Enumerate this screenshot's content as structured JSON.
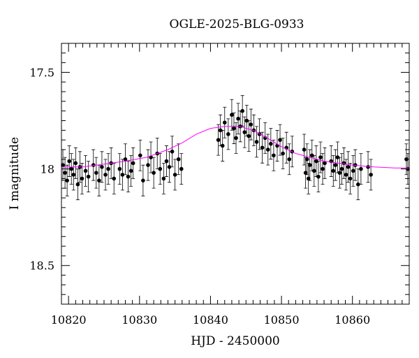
{
  "chart_data": {
    "type": "scatter",
    "title": "OGLE-2025-BLG-0933",
    "xlabel": "HJD - 2450000",
    "ylabel": "I magnitude",
    "xlim": [
      10819,
      10868
    ],
    "ylim": [
      18.7,
      17.35
    ],
    "y_inverted": true,
    "x_ticks": [
      10820,
      10830,
      10840,
      10850,
      10860
    ],
    "y_ticks": [
      17.5,
      18,
      18.5
    ],
    "x_tick_labels": [
      "10820",
      "10830",
      "10840",
      "10850",
      "10860"
    ],
    "y_tick_labels": [
      "17.5",
      "18",
      "18.5"
    ],
    "grid": false,
    "colors": {
      "points": "#000000",
      "model": "#ff00ff"
    },
    "model_curve": {
      "x": [
        10819,
        10822,
        10825,
        10828,
        10831,
        10834,
        10836,
        10838,
        10840,
        10842,
        10844,
        10846,
        10848,
        10850,
        10852,
        10854,
        10856,
        10858,
        10860,
        10863,
        10866,
        10868
      ],
      "y": [
        17.99,
        17.99,
        17.975,
        17.96,
        17.94,
        17.9,
        17.865,
        17.82,
        17.79,
        17.78,
        17.78,
        17.8,
        17.84,
        17.885,
        17.92,
        17.94,
        17.96,
        17.97,
        17.98,
        17.99,
        17.995,
        17.995
      ]
    },
    "points": {
      "x": [
        10819.2,
        10819.5,
        10819.8,
        10820.1,
        10820.4,
        10820.7,
        10821.0,
        10821.3,
        10821.6,
        10821.9,
        10822.4,
        10822.8,
        10823.5,
        10823.9,
        10824.3,
        10824.7,
        10825.2,
        10825.6,
        10826.0,
        10826.4,
        10827.2,
        10827.6,
        10828.0,
        10828.4,
        10828.8,
        10829.1,
        10830.1,
        10830.5,
        10831.2,
        10831.6,
        10832.0,
        10832.5,
        10832.9,
        10833.4,
        10833.8,
        10834.2,
        10834.6,
        10835.0,
        10835.5,
        10835.9,
        10841.1,
        10841.4,
        10841.7,
        10842.0,
        10842.5,
        10843.0,
        10843.3,
        10843.6,
        10843.9,
        10844.2,
        10844.5,
        10844.8,
        10845.1,
        10845.4,
        10845.7,
        10846.1,
        10846.5,
        10846.9,
        10847.3,
        10847.7,
        10848.1,
        10848.5,
        10848.9,
        10849.4,
        10849.8,
        10850.2,
        10850.7,
        10851.1,
        10851.5,
        10853.2,
        10853.4,
        10853.6,
        10853.8,
        10854.0,
        10854.3,
        10854.6,
        10854.9,
        10855.2,
        10855.5,
        10855.8,
        10856.1,
        10857.0,
        10857.3,
        10857.6,
        10857.9,
        10858.2,
        10858.5,
        10858.8,
        10859.1,
        10859.4,
        10859.7,
        10860.1,
        10860.4,
        10860.8,
        10861.2,
        10862.2,
        10862.6,
        10867.6,
        10867.8
      ],
      "y": [
        17.98,
        18.02,
        18.06,
        17.96,
        18.0,
        18.03,
        17.97,
        18.08,
        17.99,
        18.05,
        18.01,
        18.04,
        17.98,
        18.02,
        18.06,
        17.99,
        18.03,
        18.0,
        17.97,
        18.05,
        18.0,
        18.03,
        17.95,
        18.04,
        18.01,
        17.97,
        17.93,
        18.06,
        17.98,
        17.94,
        18.02,
        17.92,
        18.0,
        18.05,
        17.96,
        17.99,
        17.91,
        18.03,
        17.95,
        18.0,
        17.85,
        17.8,
        17.88,
        17.76,
        17.82,
        17.72,
        17.79,
        17.84,
        17.74,
        17.78,
        17.7,
        17.81,
        17.75,
        17.83,
        17.77,
        17.8,
        17.86,
        17.82,
        17.89,
        17.84,
        17.9,
        17.87,
        17.93,
        17.88,
        17.85,
        17.92,
        17.89,
        17.95,
        17.91,
        17.9,
        18.02,
        17.95,
        18.05,
        17.98,
        17.93,
        18.01,
        17.96,
        18.04,
        17.94,
        18.0,
        17.97,
        17.96,
        18.01,
        17.98,
        17.94,
        18.02,
        18.0,
        17.97,
        18.03,
        17.99,
        18.05,
        18.01,
        17.98,
        18.08,
        18.0,
        17.99,
        18.03,
        17.95,
        18.0
      ]
    }
  }
}
